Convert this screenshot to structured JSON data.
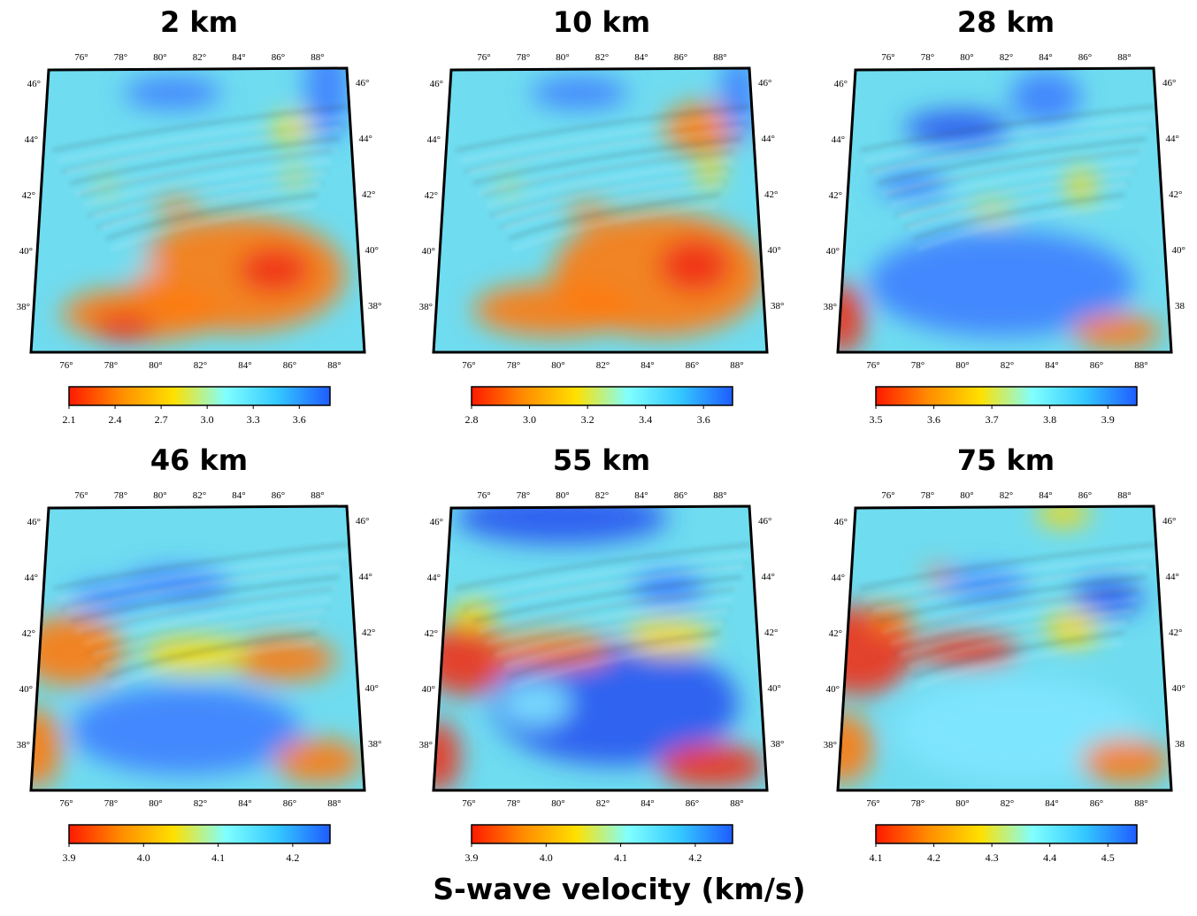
{
  "panels": [
    {
      "title": "2 km",
      "lon_top": [
        "76°",
        "78°",
        "80°",
        "82°",
        "84°",
        "86°",
        "88°"
      ],
      "lon_bottom": [
        "76°",
        "78°",
        "80°",
        "82°",
        "84°",
        "86°",
        "88°"
      ],
      "lat_left": [
        "46°",
        "44°",
        "42°",
        "40°",
        "38°"
      ],
      "lat_right": [
        "46°",
        "44°",
        "42°",
        "40°",
        "38°"
      ],
      "colorbar": {
        "range": [
          2.1,
          3.8
        ],
        "ticks": [
          2.1,
          2.4,
          2.7,
          {
            "value": 3,
            "label": "3.0"
          },
          3.3,
          3.6
        ]
      }
    },
    {
      "title": "10 km",
      "lon_top": [
        "76°",
        "78°",
        "80°",
        "82°",
        "84°",
        "86°",
        "88°"
      ],
      "lon_bottom": [
        "76°",
        "78°",
        "80°",
        "82°",
        "84°",
        "86°",
        "88°"
      ],
      "lat_left": [
        "46°",
        "44°",
        "42°",
        "40°",
        "38°"
      ],
      "lat_right": [
        "46°",
        "44°",
        "42°",
        "40°",
        "38°"
      ],
      "colorbar": {
        "range": [
          2.8,
          3.7
        ],
        "ticks": [
          2.8,
          {
            "value": 3,
            "label": "3.0"
          },
          3.2,
          3.4,
          3.6
        ]
      }
    },
    {
      "title": "28 km",
      "lon_top": [
        "76°",
        "78°",
        "80°",
        "82°",
        "84°",
        "86°",
        "88°"
      ],
      "lon_bottom": [
        "76°",
        "78°",
        "80°",
        "82°",
        "84°",
        "86°",
        "88°"
      ],
      "lat_left": [
        "46°",
        "44°",
        "42°",
        "40°",
        "38°"
      ],
      "lat_right": [
        "46°",
        "44°",
        "42°",
        "40°",
        "38"
      ],
      "colorbar": {
        "range": [
          3.5,
          3.95
        ],
        "ticks": [
          3.5,
          3.6,
          3.7,
          3.8,
          3.9
        ]
      }
    },
    {
      "title": "46 km",
      "lon_top": [
        "76°",
        "78°",
        "80°",
        "82°",
        "84°",
        "86°",
        "88°"
      ],
      "lon_bottom": [
        "76°",
        "78°",
        "80°",
        "82°",
        "84°",
        "86°",
        "88°"
      ],
      "lat_left": [
        "46°",
        "44°",
        "42°",
        "40°",
        "38°"
      ],
      "lat_right": [
        "46°",
        "44°",
        "42°",
        "40°",
        "38°"
      ],
      "colorbar": {
        "range": [
          3.9,
          4.25
        ],
        "ticks": [
          3.9,
          {
            "value": 4,
            "label": "4.0"
          },
          4.1,
          4.2
        ]
      }
    },
    {
      "title": "55 km",
      "lon_top": [
        "76°",
        "78°",
        "80°",
        "82°",
        "84°",
        "86°",
        "88°"
      ],
      "lon_bottom": [
        "76°",
        "78°",
        "80°",
        "82°",
        "84°",
        "86°",
        "88°"
      ],
      "lat_left": [
        "46°",
        "44°",
        "42°",
        "40°",
        "38°"
      ],
      "lat_right": [
        "46°",
        "44°",
        "42°",
        "40°",
        "38°"
      ],
      "colorbar": {
        "range": [
          3.9,
          4.25
        ],
        "ticks": [
          3.9,
          {
            "value": 4,
            "label": "4.0"
          },
          4.1,
          4.2
        ]
      }
    },
    {
      "title": "75 km",
      "lon_top": [
        "76°",
        "78°",
        "80°",
        "82°",
        "84°",
        "86°",
        "88°"
      ],
      "lon_bottom": [
        "76°",
        "78°",
        "80°",
        "82°",
        "84°",
        "86°",
        "88°"
      ],
      "lat_left": [
        "46°",
        "44°",
        "42°",
        "40°",
        "38°"
      ],
      "lat_right": [
        "46°",
        "44°",
        "42°",
        "40°",
        "38"
      ],
      "colorbar": {
        "range": [
          4.1,
          4.55
        ],
        "ticks": [
          4.1,
          4.2,
          4.3,
          4.4,
          4.5
        ]
      }
    }
  ],
  "colormap": [
    "#ff1a00",
    "#ff8c00",
    "#ffe000",
    "#80ffff",
    "#33c8ff",
    "#1f5cff"
  ],
  "caption": "S-wave velocity (km/s)"
}
